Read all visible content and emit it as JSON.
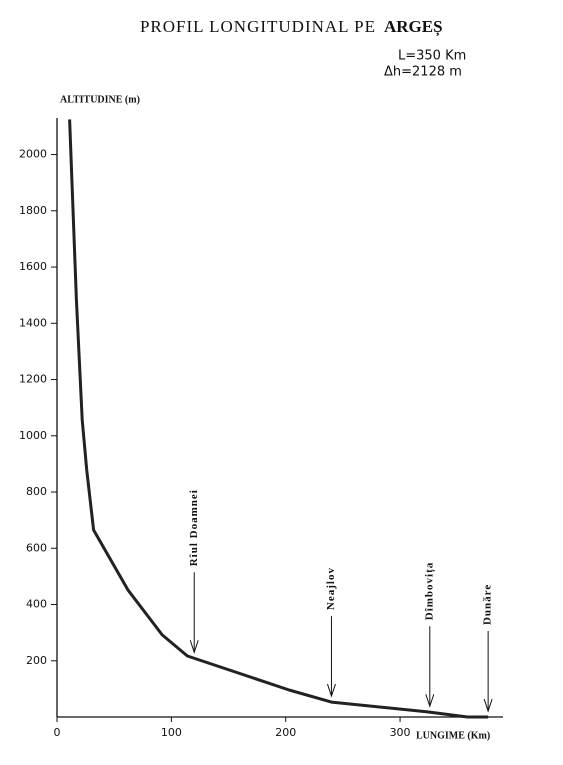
{
  "chart_data": {
    "type": "line",
    "title": "PROFIL LONGITUDINAL PE",
    "river": "ARGEȘ",
    "subtitle": [
      "L=350 Km",
      "Δh=2128 m"
    ],
    "y_label": "ALTITUDINE (m)",
    "x_label": "LUNGIME (Km)",
    "x": [
      11,
      17,
      22,
      26,
      32,
      62,
      92,
      114,
      203,
      240,
      324,
      359,
      377
    ],
    "values": [
      2125,
      1484,
      1057,
      879,
      665,
      452,
      292,
      217,
      96,
      53,
      18,
      0,
      0
    ],
    "color": "#222",
    "xlim": [
      0,
      390
    ],
    "ylim": [
      0,
      2130
    ],
    "xticks": [
      0,
      100,
      200,
      300
    ],
    "yticks": [
      200,
      400,
      600,
      800,
      1000,
      1200,
      1400,
      1600,
      1800,
      2000
    ],
    "grid": false,
    "annotations": [
      {
        "text": "Rîul Doamnei",
        "x": 120
      },
      {
        "text": "Neajlov",
        "x": 240
      },
      {
        "text": "Dîmbovița",
        "x": 326
      },
      {
        "text": "Dunăre",
        "x": 377
      }
    ]
  }
}
